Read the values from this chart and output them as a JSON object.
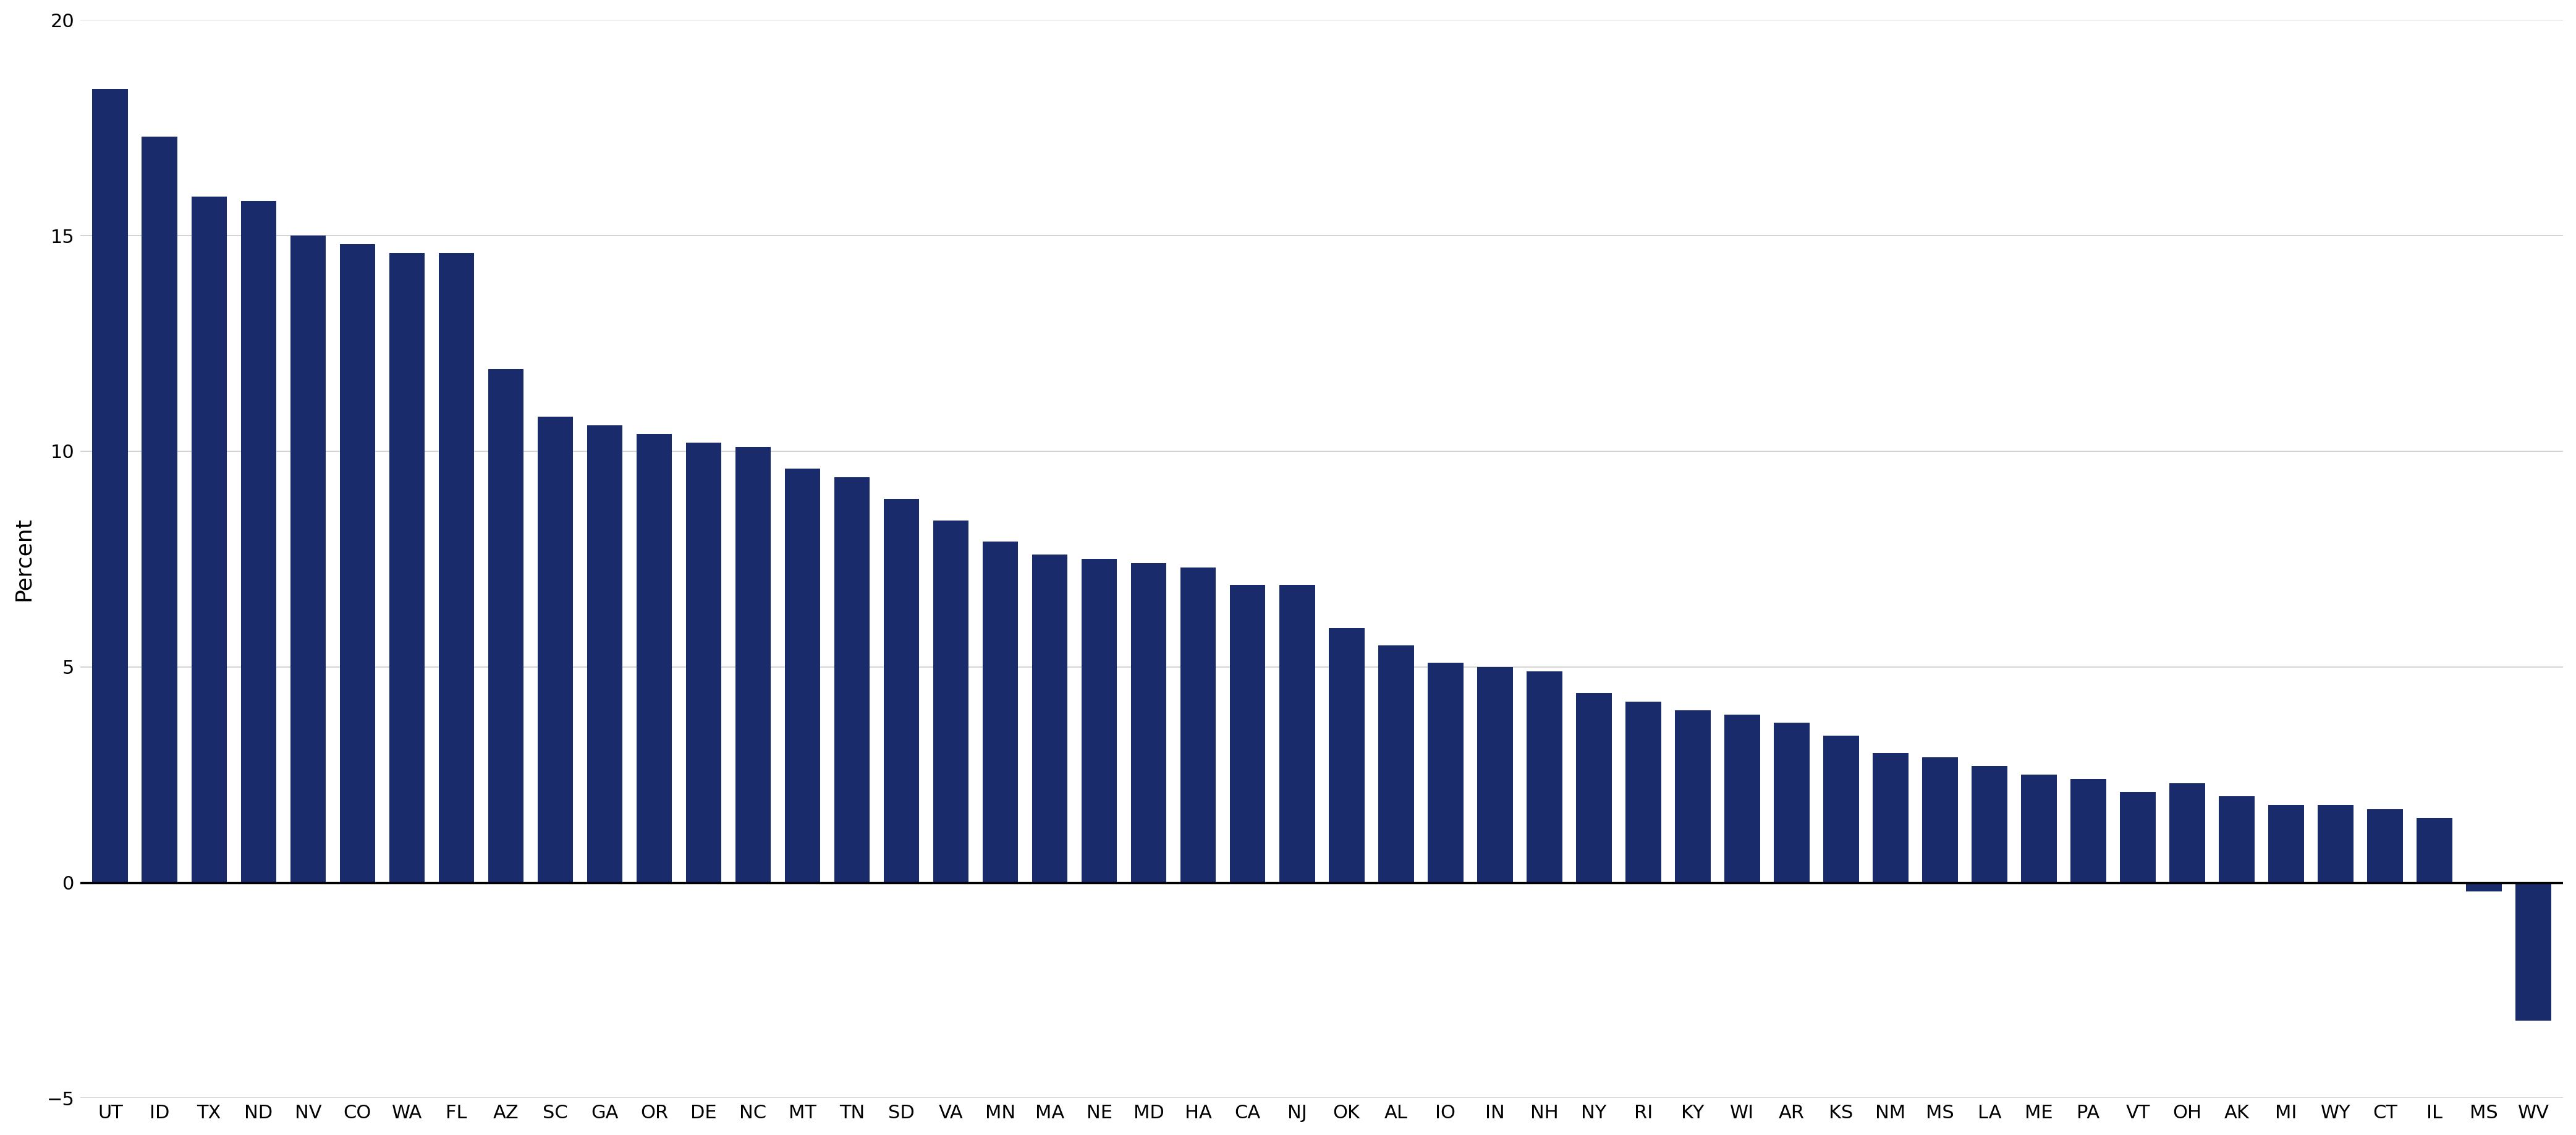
{
  "categories": [
    "UT",
    "ID",
    "TX",
    "ND",
    "NV",
    "CO",
    "WA",
    "FL",
    "AZ",
    "SC",
    "GA",
    "OR",
    "DE",
    "NC",
    "MT",
    "TN",
    "SD",
    "VA",
    "MN",
    "MA",
    "NE",
    "MD",
    "HA",
    "CA",
    "NJ",
    "OK",
    "AL",
    "IO",
    "IN",
    "NH",
    "NY",
    "RI",
    "KY",
    "WI",
    "AR",
    "KS",
    "NM",
    "MS",
    "LA",
    "ME",
    "PA",
    "VT",
    "OH",
    "AK",
    "MI",
    "WY",
    "CT",
    "IL",
    "MS",
    "WV"
  ],
  "values": [
    18.4,
    17.3,
    15.9,
    15.8,
    15.0,
    14.8,
    14.6,
    14.6,
    11.9,
    10.8,
    10.6,
    10.4,
    10.2,
    10.1,
    9.6,
    9.4,
    8.9,
    8.4,
    7.9,
    7.6,
    7.5,
    7.4,
    7.3,
    6.9,
    6.9,
    5.9,
    5.5,
    5.1,
    5.0,
    4.9,
    4.4,
    4.2,
    4.0,
    3.9,
    3.7,
    3.4,
    3.0,
    2.9,
    2.7,
    2.5,
    2.4,
    2.1,
    2.3,
    2.0,
    1.8,
    1.8,
    1.7,
    1.5,
    -0.2,
    -3.2
  ],
  "bar_color": "#1a2b6b",
  "ylabel": "Percent",
  "ylim": [
    -5,
    20
  ],
  "yticks": [
    -5,
    0,
    5,
    10,
    15,
    20
  ],
  "background_color": "#ffffff",
  "grid_color": "#cccccc",
  "tick_fontsize": 22,
  "label_fontsize": 26
}
